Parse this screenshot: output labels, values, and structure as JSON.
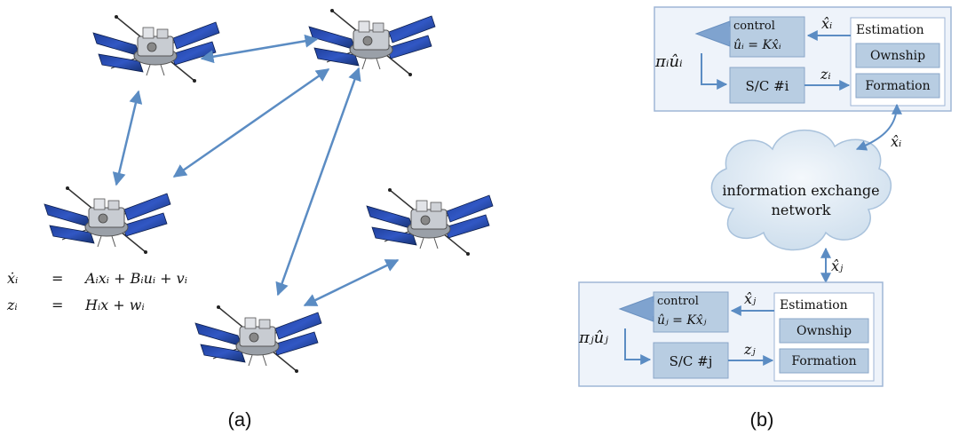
{
  "colors": {
    "panel": "#eef3fa",
    "panel_border": "#9fb6d6",
    "block": "#b8cde2",
    "block_border": "#8aa6c8",
    "arrow": "#5b8cc3",
    "cloud": "#dbe7f2"
  },
  "panel_a": {
    "caption": "(a)",
    "equations": [
      {
        "lhs": "ẋᵢ",
        "eq": "=",
        "rhs": "Aᵢxᵢ + Bᵢuᵢ + vᵢ"
      },
      {
        "lhs": "zᵢ",
        "eq": "=",
        "rhs": "Hᵢx + wᵢ"
      }
    ]
  },
  "panel_b": {
    "caption": "(b)",
    "top": {
      "control_title": "control",
      "control_law": "ûᵢ = Kx̂ᵢ",
      "estimate_label": "x̂ᵢ",
      "estimation_title": "Estimation",
      "ownship": "Ownship",
      "formation": "Formation",
      "sc_label": "S/C #i",
      "measurement": "zᵢ",
      "input_label": "πᵢûᵢ",
      "link_label": "x̂ᵢ"
    },
    "network": {
      "line1": "information exchange",
      "line2": "network"
    },
    "bottom": {
      "control_title": "control",
      "control_law": "ûⱼ = Kx̂ⱼ",
      "estimate_label": "x̂ⱼ",
      "estimation_title": "Estimation",
      "ownship": "Ownship",
      "formation": "Formation",
      "sc_label": "S/C #j",
      "measurement": "zⱼ",
      "input_label": "πⱼûⱼ",
      "link_label": "x̂ⱼ"
    }
  }
}
